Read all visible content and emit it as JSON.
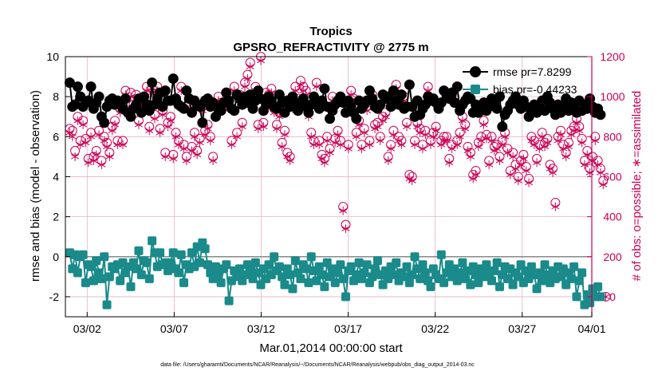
{
  "chart_data": {
    "type": "line",
    "title": "Tropics",
    "subtitle": "GPSRO_REFRACTIVITY @ 2775 m",
    "xlabel": "Mar.01,2014 00:00:00 start",
    "ylabel_left": "rmse and bias (model - observation)",
    "ylabel_right": "# of obs: o=possible; ∗=assimilated",
    "footnote": "data file: /Users/gharamti/Documents/NCAR/Reanalysis/~/Documents/NCAR/Reanalysis/webpub/obs_diag_output_2014-03.nc",
    "xlim": [
      0.75,
      31.0
    ],
    "ylim_left": [
      -3,
      10
    ],
    "ylim_right": [
      -100,
      1200
    ],
    "xticks": [
      {
        "label": "03/02",
        "x": 2
      },
      {
        "label": "03/07",
        "x": 7
      },
      {
        "label": "03/12",
        "x": 12
      },
      {
        "label": "03/17",
        "x": 17
      },
      {
        "label": "03/22",
        "x": 22
      },
      {
        "label": "03/27",
        "x": 27
      },
      {
        "label": "04/01",
        "x": 32
      }
    ],
    "yticks_left": [
      -2,
      0,
      2,
      4,
      6,
      8,
      10
    ],
    "yticks_right": [
      0,
      200,
      400,
      600,
      800,
      1000,
      1200
    ],
    "legend": [
      {
        "label": "rmse pr=7.8299",
        "color": "#000000"
      },
      {
        "label": "bias pr=-0.44233",
        "color": "#1a8a8a"
      }
    ],
    "colors": {
      "rmse": "#000000",
      "bias": "#1a8a8a",
      "obs": "#cc0055",
      "zero_line": "#888888",
      "grid": "#e8b0c4"
    },
    "series": [
      {
        "name": "rmse",
        "axis": "left",
        "values": [
          8.7,
          7.5,
          7.6,
          8.5,
          8.0,
          7.5,
          7.7,
          7.8,
          8.5,
          7.4,
          7.7,
          8.0,
          7.0,
          6.7,
          7.5,
          7.8,
          7.9,
          7.6,
          7.8,
          7.7,
          7.4,
          7.9,
          7.2,
          7.0,
          7.4,
          7.6,
          7.9,
          7.2,
          8.0,
          7.6,
          7.3,
          8.7,
          7.6,
          7.9,
          8.2,
          7.5,
          8.3,
          7.8,
          7.8,
          8.9,
          7.9,
          7.6,
          7.5,
          7.4,
          8.3,
          7.9,
          7.2,
          7.8,
          7.6,
          7.5,
          6.7,
          7.8,
          7.9,
          7.5,
          7.7,
          7.0,
          7.4,
          7.3,
          7.7,
          8.2,
          7.8,
          7.4,
          7.3,
          8.1,
          7.9,
          7.6,
          8.0,
          7.7,
          8.1,
          7.4,
          7.8,
          8.3,
          7.9,
          7.3,
          7.6,
          8.0,
          7.8,
          7.5,
          7.4,
          8.1,
          7.7,
          7.2,
          7.8,
          7.5,
          8.0,
          7.7,
          7.3,
          7.6,
          7.9,
          7.5,
          7.2,
          7.6,
          8.0,
          7.8,
          7.4,
          7.8,
          8.4,
          7.5,
          6.9,
          7.3,
          7.6,
          7.8,
          8.0,
          7.7,
          7.2,
          7.8,
          7.5,
          7.2,
          6.9,
          7.8,
          7.4,
          7.6,
          7.8,
          8.3,
          7.9,
          7.5,
          7.4,
          7.6,
          8.1,
          7.9,
          8.0,
          7.5,
          8.3,
          7.8,
          7.6,
          8.1,
          7.4,
          7.5,
          8.6,
          7.5,
          7.0,
          7.8,
          7.1,
          7.4,
          7.6,
          8.0,
          7.8,
          7.9,
          7.7,
          7.4,
          7.7,
          8.3,
          8.1,
          7.9,
          8.2,
          7.7,
          8.5,
          7.3,
          7.6,
          7.8,
          8.0,
          7.9,
          7.2,
          7.6,
          7.2,
          7.5,
          7.7,
          7.3,
          7.5,
          7.9,
          7.6,
          7.4,
          8.0,
          6.5,
          7.1,
          7.3,
          7.6,
          7.8,
          8.0,
          7.6,
          7.4,
          7.8,
          7.5,
          7.0,
          7.3,
          7.6,
          7.2,
          7.5,
          7.8,
          7.3,
          8.0,
          7.7,
          7.4,
          7.1,
          7.6,
          7.2,
          7.5,
          7.9,
          7.3,
          7.7,
          7.5,
          7.2,
          7.8,
          7.3,
          7.6,
          7.4,
          7.9,
          7.5,
          7.2,
          7.4,
          7.1
        ]
      },
      {
        "name": "bias",
        "axis": "left",
        "values": [
          0.2,
          -0.6,
          0.1,
          -0.8,
          0.0,
          0.1,
          -1.3,
          -0.4,
          -0.5,
          -1.2,
          -0.2,
          -0.8,
          -1.1,
          0.0,
          -2.4,
          -1.0,
          -0.5,
          -0.6,
          -0.4,
          -1.2,
          -0.3,
          -0.8,
          -0.5,
          -1.5,
          -0.3,
          -0.6,
          0.3,
          -0.9,
          -0.2,
          -0.3,
          -1.1,
          0.8,
          0.2,
          -0.5,
          0.2,
          -0.4,
          -0.3,
          -0.7,
          -0.3,
          0.2,
          -0.6,
          -0.8,
          0.1,
          -1.3,
          -0.4,
          -0.6,
          0.2,
          -0.5,
          0.5,
          -0.3,
          0.7,
          0.4,
          -0.4,
          -0.8,
          -1.1,
          -0.5,
          -0.9,
          -1.3,
          -0.6,
          -0.4,
          -2.2,
          -1.2,
          -0.7,
          -1.0,
          -0.6,
          -1.2,
          -0.9,
          -0.4,
          -0.7,
          -1.1,
          -0.3,
          -0.8,
          -1.4,
          -0.6,
          -1.1,
          -0.4,
          -0.9,
          0.0,
          -0.7,
          -0.5,
          -1.0,
          -1.4,
          -0.6,
          -0.9,
          -1.6,
          -0.2,
          -0.8,
          -1.1,
          -0.4,
          -0.6,
          -1.3,
          0.0,
          -0.7,
          -1.2,
          -0.5,
          -0.9,
          -1.5,
          -0.3,
          -1.0,
          -0.6,
          -1.3,
          -0.8,
          -0.4,
          -1.1,
          -2.0,
          -0.7,
          -0.5,
          -1.2,
          -0.9,
          -0.3,
          -1.1,
          -0.8,
          -0.4,
          -1.3,
          -1.0,
          -0.6,
          -0.2,
          -0.9,
          -1.4,
          -0.7,
          -1.1,
          -0.5,
          -0.9,
          -0.3,
          -1.2,
          -0.8,
          -1.0,
          -0.5,
          -1.3,
          -0.9,
          0.0,
          -0.6,
          -1.1,
          -0.4,
          -0.8,
          -1.2,
          -1.5,
          -0.6,
          -0.9,
          -1.1,
          0.1,
          -1.3,
          -0.8,
          -0.4,
          -1.0,
          -0.6,
          -1.2,
          -0.8,
          -0.3,
          -1.1,
          -0.7,
          -1.4,
          -0.5,
          -0.9,
          -1.3,
          -0.6,
          -1.0,
          -0.4,
          -0.8,
          -1.2,
          -0.7,
          -0.3,
          -1.5,
          -0.9,
          -0.5,
          -1.1,
          -0.6,
          -1.4,
          -0.8,
          -1.0,
          -0.4,
          -1.3,
          -0.7,
          -1.1,
          -0.5,
          -0.9,
          -1.6,
          -0.8,
          -1.2,
          -0.4,
          -0.9,
          -1.3,
          -0.7,
          -1.1,
          -0.5,
          -1.0,
          -0.6,
          -1.4,
          -0.8,
          -1.1,
          -0.5,
          -2.0,
          -1.2,
          -0.8,
          -2.4,
          -1.9,
          -2.3,
          -1.6,
          -2.0,
          -1.5,
          -2.0
        ]
      },
      {
        "name": "obs_possible",
        "axis": "right",
        "marker": "o",
        "values": [
          840,
          830,
          730,
          900,
          780,
          880,
          790,
          690,
          820,
          700,
          730,
          830,
          680,
          800,
          770,
          720,
          850,
          880,
          780,
          940,
          780,
          1030,
          930,
          1020,
          960,
          1010,
          880,
          980,
          970,
          1050,
          850,
          1040,
          910,
          1050,
          840,
          930,
          720,
          870,
          900,
          710,
          820,
          780,
          1050,
          760,
          700,
          960,
          750,
          820,
          730,
          790,
          950,
          830,
          860,
          800,
          700,
          960,
          1000,
          970,
          960,
          1020,
          960,
          780,
          1050,
          820,
          1010,
          870,
          1070,
          1110,
          1170,
          1000,
          1050,
          860,
          1200,
          870,
          1020,
          1010,
          1040,
          940,
          860,
          920,
          770,
          830,
          720,
          700,
          960,
          1050,
          990,
          1080,
          1050,
          1030,
          920,
          820,
          780,
          1070,
          780,
          710,
          690,
          800,
          740,
          1000,
          790,
          830,
          780,
          450,
          360,
          760,
          1030,
          990,
          820,
          880,
          760,
          840,
          950,
          780,
          1010,
          860,
          870,
          800,
          900,
          920,
          700,
          760,
          830,
          1060,
          800,
          780,
          1000,
          870,
          610,
          600,
          780,
          870,
          840,
          760,
          830,
          1050,
          780,
          820,
          850,
          960,
          780,
          800,
          800,
          690,
          760,
          1000,
          780,
          820,
          900,
          860,
          750,
          720,
          610,
          630,
          770,
          800,
          880,
          810,
          680,
          800,
          750,
          760,
          700,
          780,
          820,
          740,
          630,
          720,
          660,
          600,
          680,
          710,
          650,
          590,
          800,
          780,
          690,
          760,
          820,
          770,
          790,
          660,
          640,
          470,
          800,
          830,
          760,
          720,
          770,
          830,
          850,
          890,
          850,
          790,
          680,
          730,
          640,
          700,
          800,
          680,
          640,
          580,
          0
        ]
      },
      {
        "name": "obs_assimilated",
        "axis": "right",
        "marker": "*",
        "values": [
          820,
          800,
          700,
          880,
          760,
          860,
          770,
          670,
          800,
          680,
          710,
          810,
          660,
          780,
          750,
          700,
          830,
          860,
          760,
          920,
          760,
          1010,
          910,
          1000,
          940,
          990,
          860,
          960,
          950,
          1030,
          830,
          1020,
          890,
          1030,
          820,
          910,
          700,
          850,
          880,
          690,
          800,
          760,
          1030,
          740,
          680,
          940,
          730,
          800,
          710,
          770,
          930,
          810,
          840,
          780,
          680,
          940,
          980,
          950,
          940,
          1000,
          940,
          760,
          1030,
          800,
          990,
          850,
          1050,
          1090,
          1150,
          980,
          1030,
          840,
          1180,
          850,
          1000,
          990,
          1020,
          920,
          840,
          900,
          750,
          810,
          700,
          680,
          940,
          1030,
          970,
          1060,
          1030,
          1010,
          900,
          800,
          760,
          1050,
          760,
          690,
          670,
          780,
          720,
          980,
          770,
          810,
          760,
          430,
          340,
          740,
          1010,
          970,
          800,
          860,
          740,
          820,
          930,
          760,
          990,
          840,
          850,
          780,
          880,
          900,
          680,
          740,
          810,
          1040,
          780,
          760,
          980,
          850,
          590,
          580,
          760,
          850,
          820,
          740,
          810,
          1030,
          760,
          800,
          830,
          940,
          760,
          780,
          780,
          670,
          740,
          980,
          760,
          800,
          880,
          840,
          730,
          700,
          590,
          610,
          750,
          780,
          860,
          790,
          660,
          780,
          730,
          740,
          680,
          760,
          800,
          720,
          610,
          700,
          640,
          580,
          660,
          690,
          630,
          570,
          780,
          760,
          670,
          740,
          800,
          750,
          770,
          640,
          620,
          450,
          780,
          810,
          740,
          700,
          750,
          810,
          830,
          870,
          830,
          770,
          660,
          710,
          620,
          680,
          780,
          660,
          620,
          560,
          0
        ]
      }
    ]
  }
}
